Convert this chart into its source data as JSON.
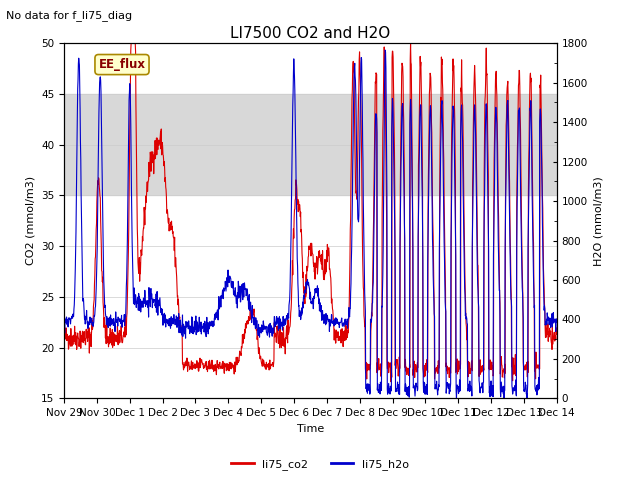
{
  "title": "LI7500 CO2 and H2O",
  "subtitle": "No data for f_li75_diag",
  "xlabel": "Time",
  "ylabel_left": "CO2 (mmol/m3)",
  "ylabel_right": "H2O (mmol/m3)",
  "ylim_left": [
    15,
    50
  ],
  "ylim_right": [
    0,
    1800
  ],
  "yticks_left": [
    15,
    20,
    25,
    30,
    35,
    40,
    45,
    50
  ],
  "yticks_right": [
    0,
    200,
    400,
    600,
    800,
    1000,
    1200,
    1400,
    1600,
    1800
  ],
  "xtick_labels": [
    "Nov 29",
    "Nov 30",
    "Dec 1",
    "Dec 2",
    "Dec 3",
    "Dec 4",
    "Dec 5",
    "Dec 6",
    "Dec 7",
    "Dec 8",
    "Dec 9",
    "Dec 10",
    "Dec 11",
    "Dec 12",
    "Dec 13",
    "Dec 14"
  ],
  "shaded_band": [
    35,
    45
  ],
  "legend_labels": [
    "li75_co2",
    "li75_h2o"
  ],
  "co2_color": "#dd0000",
  "h2o_color": "#0000cc",
  "box_label": "EE_flux",
  "box_facecolor": "#ffffcc",
  "box_edgecolor": "#aa8800",
  "box_text_color": "#880000",
  "shaded_color": "#d8d8d8",
  "grid_color": "#cccccc",
  "line_width": 0.8,
  "title_fontsize": 11,
  "subtitle_fontsize": 8,
  "axis_label_fontsize": 8,
  "tick_fontsize": 7.5,
  "legend_fontsize": 8
}
